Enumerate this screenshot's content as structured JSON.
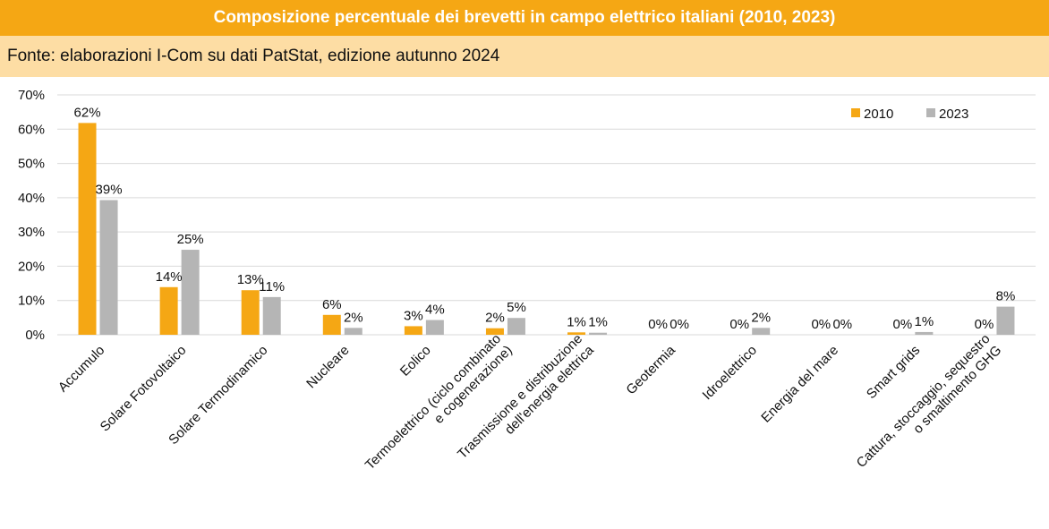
{
  "header": {
    "title": "Composizione percentuale dei brevetti in campo elettrico italiani (2010, 2023)",
    "source": "Fonte: elaborazioni I-Com su dati PatStat, edizione autunno 2024"
  },
  "colors": {
    "title_bg": "#f5a714",
    "source_bg": "#fddda4",
    "series_2010": "#f5a714",
    "series_2023": "#b5b5b5"
  },
  "chart_data": {
    "type": "bar",
    "title": "Composizione percentuale dei brevetti in campo elettrico italiani (2010, 2023)",
    "categories": [
      [
        "Accumulo"
      ],
      [
        "Solare Fotovoltaico"
      ],
      [
        "Solare Termodinamico"
      ],
      [
        "Nucleare"
      ],
      [
        "Eolico"
      ],
      [
        "Termoelettrico (ciclo combinato",
        "e cogenerazione)"
      ],
      [
        "Trasmissione e distribuzione",
        "dell'energia elettrica"
      ],
      [
        "Geotermia"
      ],
      [
        "Idroelettrico"
      ],
      [
        "Energia del mare"
      ],
      [
        "Smart grids"
      ],
      [
        "Cattura, stoccaggio, sequestro",
        "o smaltimento GHG"
      ]
    ],
    "series": [
      {
        "name": "2010",
        "color": "#f5a714",
        "values": [
          61.8,
          13.9,
          13.0,
          5.8,
          2.5,
          1.9,
          0.7,
          0,
          0,
          0,
          0,
          0
        ],
        "labels": [
          "62%",
          "14%",
          "13%",
          "6%",
          "3%",
          "2%",
          "1%",
          "0%",
          "0%",
          "0%",
          "0%",
          "0%"
        ]
      },
      {
        "name": "2023",
        "color": "#b5b5b5",
        "values": [
          39.3,
          24.8,
          11.0,
          2.0,
          4.3,
          4.9,
          0.6,
          0,
          2.0,
          0,
          0.8,
          8.2
        ],
        "labels": [
          "39%",
          "25%",
          "11%",
          "2%",
          "4%",
          "5%",
          "1%",
          "0%",
          "2%",
          "0%",
          "1%",
          "8%"
        ]
      }
    ],
    "ylim": [
      0,
      70
    ],
    "yticks": [
      0,
      10,
      20,
      30,
      40,
      50,
      60,
      70
    ],
    "ytick_labels": [
      "0%",
      "10%",
      "20%",
      "30%",
      "40%",
      "50%",
      "60%",
      "70%"
    ],
    "grid": true,
    "legend": "top-right"
  }
}
